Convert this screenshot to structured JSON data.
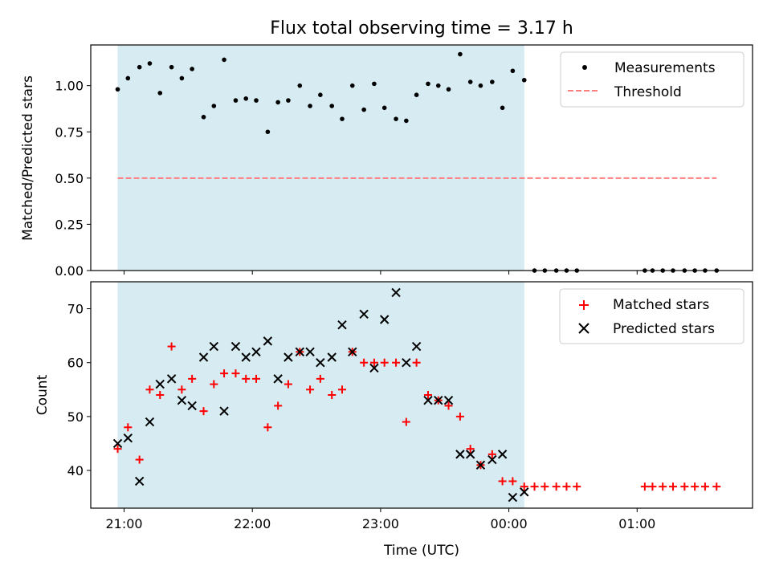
{
  "figure": {
    "title": "Flux total observing time = 3.17 h",
    "xlabel": "Time (UTC)",
    "x_ticks": [
      "21:00",
      "22:00",
      "23:00",
      "00:00",
      "01:00"
    ]
  },
  "colors": {
    "shade": "#add8e6",
    "measurement": "#000000",
    "threshold": "#ff7f7f",
    "matched": "#ff0000",
    "predicted": "#000000"
  },
  "chart_data": [
    {
      "type": "scatter",
      "ylabel": "Matched/Predicted stars",
      "xlim": [
        -0.26,
        4.9
      ],
      "ylim": [
        0,
        1.22
      ],
      "y_ticks": [
        "0.00",
        "0.25",
        "0.50",
        "0.75",
        "1.00"
      ],
      "y_tick_values": [
        0,
        0.25,
        0.5,
        0.75,
        1.0
      ],
      "shaded_span": [
        -0.05,
        3.12
      ],
      "legend_position": "top-right",
      "series": [
        {
          "name": "Measurements",
          "marker": "dot",
          "x": [
            -0.05,
            0.03,
            0.12,
            0.2,
            0.28,
            0.37,
            0.45,
            0.53,
            0.62,
            0.7,
            0.78,
            0.87,
            0.95,
            1.03,
            1.12,
            1.2,
            1.28,
            1.37,
            1.45,
            1.53,
            1.62,
            1.7,
            1.78,
            1.87,
            1.95,
            2.03,
            2.12,
            2.2,
            2.28,
            2.37,
            2.45,
            2.53,
            2.62,
            2.7,
            2.78,
            2.87,
            2.95,
            3.03,
            3.12,
            3.2,
            3.28,
            3.37,
            3.45,
            3.53,
            4.06,
            4.12,
            4.2,
            4.28,
            4.37,
            4.45,
            4.53,
            4.62
          ],
          "y": [
            0.98,
            1.04,
            1.1,
            1.12,
            0.96,
            1.1,
            1.04,
            1.09,
            0.83,
            0.89,
            1.14,
            0.92,
            0.93,
            0.92,
            0.75,
            0.91,
            0.92,
            1.0,
            0.89,
            0.95,
            0.89,
            0.82,
            1.0,
            0.87,
            1.01,
            0.88,
            0.82,
            0.81,
            0.95,
            1.01,
            1.0,
            0.98,
            1.17,
            1.02,
            1.0,
            1.02,
            0.88,
            1.08,
            1.03,
            0,
            0,
            0,
            0,
            0,
            0,
            0,
            0,
            0,
            0,
            0,
            0,
            0
          ]
        },
        {
          "name": "Threshold",
          "style": "dashed",
          "x": [
            -0.05,
            4.62
          ],
          "y": [
            0.5,
            0.5
          ]
        }
      ]
    },
    {
      "type": "scatter",
      "ylabel": "Count",
      "xlim": [
        -0.26,
        4.9
      ],
      "ylim": [
        33,
        75
      ],
      "y_ticks": [
        "40",
        "50",
        "60",
        "70"
      ],
      "y_tick_values": [
        40,
        50,
        60,
        70
      ],
      "shaded_span": [
        -0.05,
        3.12
      ],
      "legend_position": "top-right",
      "series": [
        {
          "name": "Matched stars",
          "marker": "plus",
          "x": [
            -0.05,
            0.03,
            0.12,
            0.2,
            0.28,
            0.37,
            0.45,
            0.53,
            0.62,
            0.7,
            0.78,
            0.87,
            0.95,
            1.03,
            1.12,
            1.2,
            1.28,
            1.37,
            1.45,
            1.53,
            1.62,
            1.7,
            1.78,
            1.87,
            1.95,
            2.03,
            2.12,
            2.2,
            2.28,
            2.37,
            2.45,
            2.53,
            2.62,
            2.7,
            2.78,
            2.87,
            2.95,
            3.03,
            3.12,
            3.2,
            3.28,
            3.37,
            3.45,
            3.53,
            4.06,
            4.12,
            4.2,
            4.28,
            4.37,
            4.45,
            4.53,
            4.62
          ],
          "y": [
            44,
            48,
            42,
            55,
            54,
            63,
            55,
            57,
            51,
            56,
            58,
            58,
            57,
            57,
            48,
            52,
            56,
            62,
            55,
            57,
            54,
            55,
            62,
            60,
            60,
            60,
            60,
            49,
            60,
            54,
            53,
            52,
            50,
            44,
            41,
            43,
            38,
            38,
            37,
            37,
            37,
            37,
            37,
            37,
            37,
            37,
            37,
            37,
            37,
            37,
            37,
            37
          ]
        },
        {
          "name": "Predicted stars",
          "marker": "cross",
          "x": [
            -0.05,
            0.03,
            0.12,
            0.2,
            0.28,
            0.37,
            0.45,
            0.53,
            0.62,
            0.7,
            0.78,
            0.87,
            0.95,
            1.03,
            1.12,
            1.2,
            1.28,
            1.37,
            1.45,
            1.53,
            1.62,
            1.7,
            1.78,
            1.87,
            1.95,
            2.03,
            2.12,
            2.2,
            2.28,
            2.37,
            2.45,
            2.53,
            2.62,
            2.7,
            2.78,
            2.87,
            2.95,
            3.03,
            3.12
          ],
          "y": [
            45,
            46,
            38,
            49,
            56,
            57,
            53,
            52,
            61,
            63,
            51,
            63,
            61,
            62,
            64,
            57,
            61,
            62,
            62,
            60,
            61,
            67,
            62,
            69,
            59,
            68,
            73,
            60,
            63,
            53,
            53,
            53,
            43,
            43,
            41,
            42,
            43,
            35,
            36
          ]
        }
      ]
    }
  ]
}
